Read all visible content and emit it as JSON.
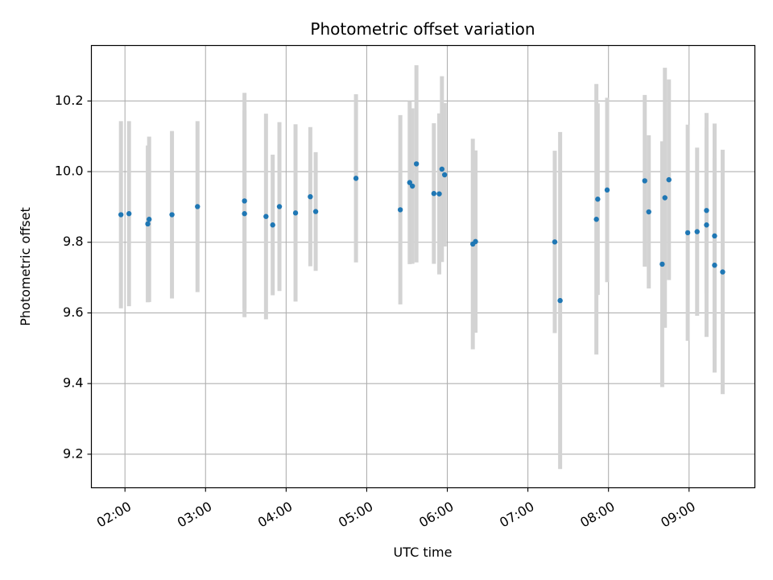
{
  "chart_data": {
    "type": "scatter",
    "title": "Photometric offset variation",
    "xlabel": "UTC time",
    "ylabel": "Photometric offset",
    "x_tick_labels": [
      "02:00",
      "03:00",
      "04:00",
      "05:00",
      "06:00",
      "07:00",
      "08:00",
      "09:00"
    ],
    "y_tick_labels": [
      "9.2",
      "9.4",
      "9.6",
      "9.8",
      "10.0",
      "10.2"
    ],
    "xlim": [
      "01:35",
      "09:49"
    ],
    "ylim": [
      9.105,
      10.357
    ],
    "grid": true,
    "colors": {
      "points": "#1f77b4",
      "error_bars": "#d3d3d3",
      "grid": "#b0b0b0",
      "axes": "#000000"
    },
    "series": [
      {
        "x": [
          "01:57",
          "02:03",
          "02:17",
          "02:18",
          "02:35",
          "02:54",
          "03:29",
          "03:29",
          "03:45",
          "03:50",
          "03:55",
          "04:07",
          "04:18",
          "04:22",
          "04:52",
          "05:25",
          "05:32",
          "05:34",
          "05:37",
          "05:50",
          "05:54",
          "05:56",
          "05:58",
          "06:19",
          "06:21",
          "07:20",
          "07:24",
          "07:51",
          "07:52",
          "07:59",
          "08:27",
          "08:30",
          "08:40",
          "08:42",
          "08:45",
          "08:59",
          "09:06",
          "09:13",
          "09:13",
          "09:19",
          "09:19",
          "09:25"
        ],
        "y": [
          9.878,
          9.881,
          9.852,
          9.865,
          9.878,
          9.901,
          9.917,
          9.881,
          9.873,
          9.849,
          9.901,
          9.883,
          9.929,
          9.887,
          9.981,
          9.892,
          9.969,
          9.959,
          10.022,
          9.938,
          9.937,
          10.007,
          9.991,
          9.795,
          9.802,
          9.801,
          9.635,
          9.865,
          9.922,
          9.948,
          9.974,
          9.886,
          9.738,
          9.926,
          9.977,
          9.827,
          9.83,
          9.849,
          9.89,
          9.735,
          9.818,
          9.716
        ],
        "yerr": [
          0.265,
          0.262,
          0.222,
          0.234,
          0.237,
          0.242,
          0.306,
          0.293,
          0.291,
          0.199,
          0.239,
          0.251,
          0.197,
          0.168,
          0.238,
          0.268,
          0.231,
          0.22,
          0.279,
          0.199,
          0.228,
          0.263,
          0.203,
          0.298,
          0.258,
          0.258,
          0.477,
          0.383,
          0.271,
          0.261,
          0.243,
          0.217,
          0.348,
          0.368,
          0.284,
          0.306,
          0.238,
          0.317,
          0.235,
          0.304,
          0.318,
          0.346
        ]
      }
    ]
  }
}
